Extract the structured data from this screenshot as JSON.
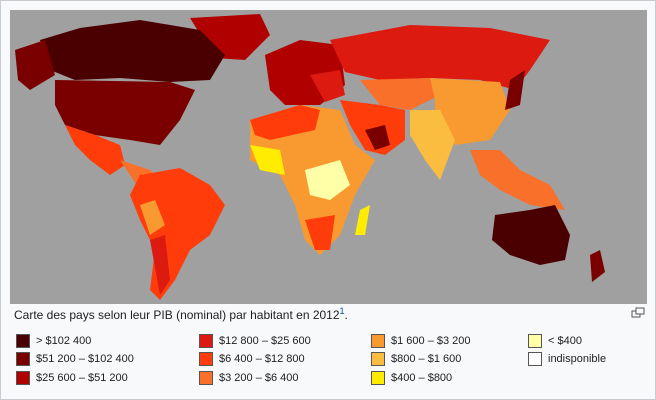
{
  "caption": {
    "text": "Carte des pays selon leur PIB (nominal) par habitant en 2012",
    "note": "1",
    "end": "."
  },
  "legend": [
    {
      "label": "> $102 400",
      "color": "#4a0000"
    },
    {
      "label": "$51 200 – $102 400",
      "color": "#7a0000"
    },
    {
      "label": "$25 600 – $51 200",
      "color": "#b00000"
    },
    {
      "label": "$12 800 – $25 600",
      "color": "#dd1a10"
    },
    {
      "label": "$6 400 – $12 800",
      "color": "#ff3c0a"
    },
    {
      "label": "$3 200 – $6 400",
      "color": "#f8702a"
    },
    {
      "label": "$1 600 – $3 200",
      "color": "#f99a30"
    },
    {
      "label": "$800 – $1 600",
      "color": "#fbbd40"
    },
    {
      "label": "$400 – $800",
      "color": "#ffec00"
    },
    {
      "label": "< $400",
      "color": "#ffffa8"
    },
    {
      "label": "indisponible",
      "color": "#ffffff"
    }
  ]
}
